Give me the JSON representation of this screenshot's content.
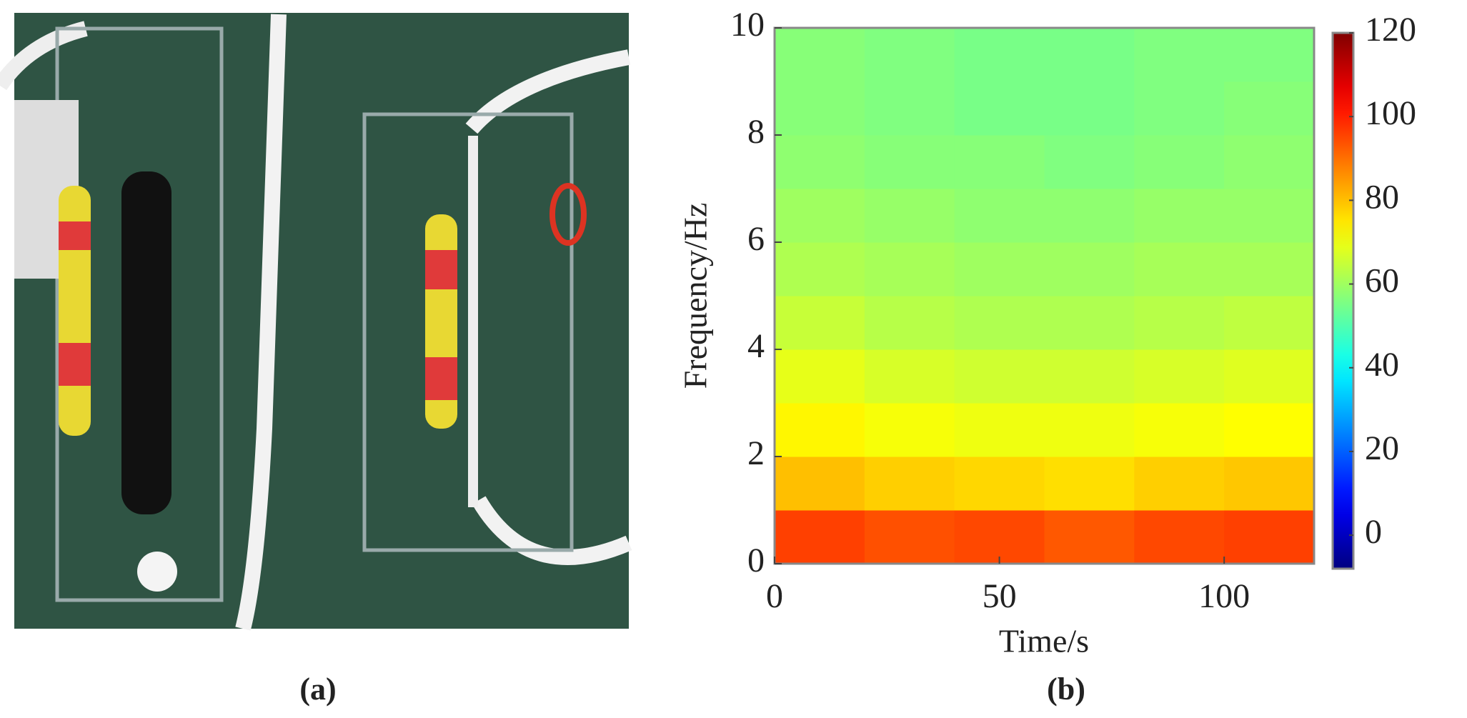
{
  "panels": {
    "a": "(a)",
    "b": "(b)"
  },
  "chart_data": {
    "type": "heatmap",
    "xlabel": "Time/s",
    "ylabel": "Frequency/Hz",
    "x_bins": [
      0,
      20,
      40,
      60,
      80,
      100,
      120
    ],
    "y_bins": [
      0,
      1,
      2,
      3,
      4,
      5,
      6,
      7,
      8,
      9,
      10
    ],
    "values": [
      [
        96,
        94,
        95,
        93,
        95,
        96
      ],
      [
        80,
        78,
        77,
        76,
        78,
        79
      ],
      [
        73,
        71,
        70,
        70,
        71,
        72
      ],
      [
        69,
        67,
        66,
        66,
        67,
        68
      ],
      [
        65,
        63,
        62,
        62,
        63,
        64
      ],
      [
        62,
        61,
        60,
        60,
        61,
        61
      ],
      [
        60,
        59,
        58,
        58,
        59,
        59
      ],
      [
        58,
        57,
        57,
        56,
        57,
        58
      ],
      [
        57,
        56,
        55,
        55,
        56,
        57
      ],
      [
        57,
        56,
        55,
        55,
        56,
        56
      ]
    ],
    "colormap": "jet",
    "xlim": [
      0,
      120
    ],
    "xticks": [
      0,
      50,
      100
    ],
    "ylim": [
      0,
      10
    ],
    "yticks": [
      0,
      2,
      4,
      6,
      8,
      10
    ],
    "clim": [
      -8,
      120
    ],
    "cticks": [
      0,
      20,
      40,
      60,
      80,
      100,
      120
    ]
  }
}
